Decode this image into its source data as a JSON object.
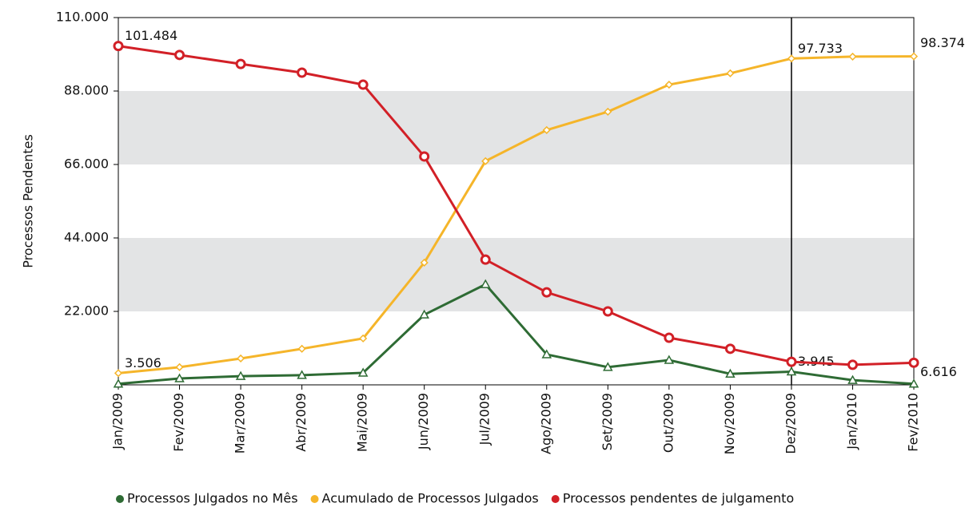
{
  "chart_data": {
    "type": "line",
    "y_label": "Processos Pendentes",
    "categories": [
      "Jan/2009",
      "Fev/2009",
      "Mar/2009",
      "Abr/2009",
      "Mai/2009",
      "Jun/2009",
      "Jul/2009",
      "Ago/2009",
      "Set/2009",
      "Out/2009",
      "Nov/2009",
      "Dez/2009",
      "Jan/2010",
      "Fev/2010"
    ],
    "series": [
      {
        "name": "Processos Julgados no Mês",
        "color": "#2e6b34",
        "marker": "triangle",
        "values": [
          300,
          1900,
          2600,
          2900,
          3600,
          21000,
          30100,
          9100,
          5300,
          7400,
          3300,
          3945,
          1400,
          300
        ],
        "value_labels": [
          null,
          null,
          null,
          null,
          null,
          null,
          null,
          null,
          null,
          null,
          null,
          "3.945",
          null,
          null
        ]
      },
      {
        "name": "Acumulado de Processos Julgados",
        "color": "#f5b52a",
        "marker": "diamond",
        "values": [
          3506,
          5300,
          7900,
          10800,
          13900,
          36600,
          67000,
          76300,
          81800,
          89900,
          93300,
          97733,
          98300,
          98374
        ],
        "value_labels": [
          "3.506",
          null,
          null,
          null,
          null,
          null,
          null,
          null,
          null,
          null,
          null,
          "97.733",
          null,
          "98.374"
        ]
      },
      {
        "name": "Processos pendentes de julgamento",
        "color": "#d22027",
        "marker": "circle",
        "values": [
          101484,
          98800,
          96100,
          93500,
          89900,
          68400,
          37500,
          27700,
          22000,
          14100,
          10800,
          6900,
          6000,
          6616
        ],
        "value_labels": [
          "101.484",
          null,
          null,
          null,
          null,
          null,
          null,
          null,
          null,
          null,
          null,
          null,
          null,
          "6.616"
        ]
      }
    ],
    "ylim": [
      0,
      110000
    ],
    "yticks": [
      {
        "value": 22000,
        "label": "22.000"
      },
      {
        "value": 44000,
        "label": "44.000"
      },
      {
        "value": 66000,
        "label": "66.000"
      },
      {
        "value": 88000,
        "label": "88.000"
      },
      {
        "value": 110000,
        "label": "110.000"
      }
    ],
    "grid": "bands",
    "legend": "bottom"
  }
}
